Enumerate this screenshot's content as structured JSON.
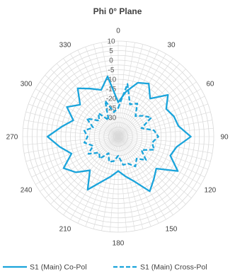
{
  "chart_data": {
    "type": "line",
    "subtype": "polar",
    "title": "Phi 0° Plane",
    "angular_ticks": [
      "0",
      "30",
      "60",
      "90",
      "120",
      "150",
      "180",
      "210",
      "240",
      "270",
      "300",
      "330"
    ],
    "radial_ticks": [
      "10",
      "5",
      "0",
      "-5",
      "-10",
      "-15",
      "-20",
      "-25",
      "-30"
    ],
    "radial_range": [
      -40,
      10
    ],
    "grid": true,
    "legend_position": "bottom",
    "series": [
      {
        "name": "S1 (Main) Co-Pol",
        "color": "#1AA4DB",
        "style": "solid",
        "angles": [
          0,
          10,
          20,
          30,
          40,
          50,
          60,
          70,
          80,
          90,
          100,
          110,
          120,
          130,
          140,
          150,
          160,
          170,
          180,
          190,
          200,
          210,
          220,
          230,
          240,
          250,
          260,
          270,
          280,
          290,
          300,
          310,
          320,
          330,
          340,
          350
        ],
        "values": [
          -22,
          -16,
          -10,
          -8,
          -14,
          -6,
          -11,
          -9,
          -8,
          -2,
          -9,
          -11,
          -4,
          -14,
          -11,
          -7,
          -15,
          -19,
          -22,
          -19,
          -15,
          -8,
          -17,
          -11,
          -7,
          -14,
          -9,
          -3,
          -10,
          -15,
          -9,
          -14,
          -7,
          -11,
          -14,
          -8
        ]
      },
      {
        "name": "S1 (Main) Cross-Pol",
        "color": "#1AA4DB",
        "style": "dashed",
        "angles": [
          0,
          10,
          20,
          30,
          40,
          50,
          60,
          70,
          80,
          90,
          100,
          110,
          120,
          130,
          140,
          150,
          160,
          170,
          180,
          190,
          200,
          210,
          220,
          230,
          240,
          250,
          260,
          270,
          280,
          290,
          300,
          310,
          320,
          330,
          340,
          350
        ],
        "values": [
          -25,
          -12,
          -22,
          -20,
          -26,
          -23,
          -20,
          -27,
          -21,
          -19,
          -22,
          -20,
          -26,
          -21,
          -25,
          -22,
          -25,
          -25,
          -30,
          -27,
          -26,
          -30,
          -25,
          -27,
          -22,
          -26,
          -22,
          -24,
          -22,
          -26,
          -21,
          -27,
          -24,
          -30,
          -20,
          -27
        ]
      }
    ]
  }
}
